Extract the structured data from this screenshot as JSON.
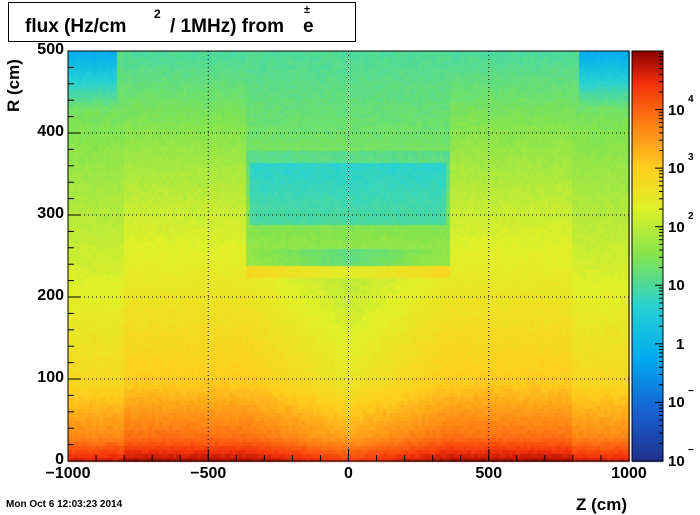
{
  "chart_data": {
    "type": "heatmap",
    "title": {
      "prefix": "flux (Hz/cm",
      "exponent": "2",
      "middle": "/ 1MHz) from",
      "particle": "e",
      "particle_sup": "±"
    },
    "xlabel": "Z (cm)",
    "ylabel": "R (cm)",
    "xlim": [
      -1000,
      1000
    ],
    "ylim": [
      0,
      500
    ],
    "x_ticks": [
      "−1000",
      "−500",
      "0",
      "500",
      "1000"
    ],
    "x_tick_values": [
      -1000,
      -500,
      0,
      500,
      1000
    ],
    "y_ticks": [
      "0",
      "100",
      "200",
      "300",
      "400",
      "500"
    ],
    "y_tick_values": [
      0,
      100,
      200,
      300,
      400,
      500
    ],
    "grid": true,
    "colorbar": {
      "scale": "log",
      "range": [
        0.01,
        100000
      ],
      "tick_labels": [
        {
          "base": "10",
          "exp": "4"
        },
        {
          "base": "10",
          "exp": "3"
        },
        {
          "base": "10",
          "exp": "2"
        },
        {
          "base": "10",
          "exp": ""
        },
        {
          "base": "1",
          "exp": ""
        },
        {
          "base": "10",
          "exp": "−"
        },
        {
          "base": "10",
          "exp": "−"
        }
      ],
      "tick_values": [
        10000,
        1000,
        100,
        10,
        1,
        0.1,
        0.01
      ]
    },
    "colors": {
      "high": "#8b0000",
      "mid_high": "#ff3300",
      "mid": "#ffd000",
      "mid_low": "#a0e040",
      "low_mid": "#00c0f0",
      "low": "#1e3c9b"
    }
  },
  "footer": {
    "timestamp": "Mon Oct  6 12:03:23 2014"
  }
}
